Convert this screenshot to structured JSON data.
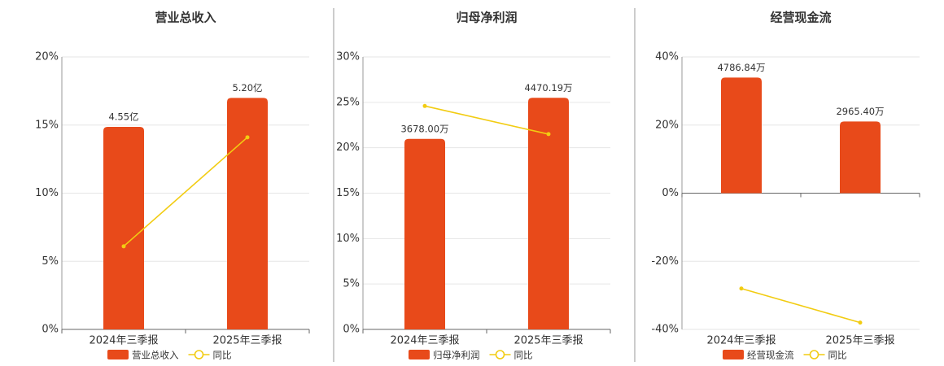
{
  "chart_data": [
    {
      "type": "bar",
      "title": "营业总收入",
      "categories": [
        "2024年三季报",
        "2025年三季报"
      ],
      "series": [
        {
          "name": "营业总收入",
          "type": "bar",
          "color": "#e84a1a",
          "axis": "y2",
          "values": [
            4.55,
            5.2
          ],
          "value_labels": [
            "4.55亿",
            "5.20亿"
          ]
        },
        {
          "name": "同比",
          "type": "line",
          "color": "#f2cc12",
          "values": [
            6.1,
            14.1
          ]
        }
      ],
      "ylim": [
        0,
        20
      ],
      "yticks": [
        {
          "value": 0,
          "label": "0%"
        },
        {
          "value": 5,
          "label": "5%"
        },
        {
          "value": 10,
          "label": "10%"
        },
        {
          "value": 15,
          "label": "15%"
        },
        {
          "value": 20,
          "label": "20%"
        }
      ],
      "y2lim": [
        0,
        6.12
      ],
      "grid": true
    },
    {
      "type": "bar",
      "title": "归母净利润",
      "categories": [
        "2024年三季报",
        "2025年三季报"
      ],
      "series": [
        {
          "name": "归母净利润",
          "type": "bar",
          "color": "#e84a1a",
          "axis": "y2",
          "values": [
            3678.0,
            4470.19
          ],
          "value_labels": [
            "3678.00万",
            "4470.19万"
          ]
        },
        {
          "name": "同比",
          "type": "line",
          "color": "#f2cc12",
          "values": [
            24.6,
            21.5
          ]
        }
      ],
      "ylim": [
        0,
        30
      ],
      "yticks": [
        {
          "value": 0,
          "label": "0%"
        },
        {
          "value": 5,
          "label": "5%"
        },
        {
          "value": 10,
          "label": "10%"
        },
        {
          "value": 15,
          "label": "15%"
        },
        {
          "value": 20,
          "label": "20%"
        },
        {
          "value": 25,
          "label": "25%"
        },
        {
          "value": 30,
          "label": "30%"
        }
      ],
      "y2lim": [
        0,
        5260
      ],
      "grid": true
    },
    {
      "type": "bar",
      "title": "经营现金流",
      "categories": [
        "2024年三季报",
        "2025年三季报"
      ],
      "series": [
        {
          "name": "经营现金流",
          "type": "bar",
          "color": "#e84a1a",
          "axis": "y2",
          "values": [
            4786.84,
            2965.4
          ],
          "value_labels": [
            "4786.84万",
            "2965.40万"
          ]
        },
        {
          "name": "同比",
          "type": "line",
          "color": "#f2cc12",
          "values": [
            -28,
            -38
          ]
        }
      ],
      "ylim": [
        -40,
        40
      ],
      "yticks": [
        {
          "value": -40,
          "label": "-40%"
        },
        {
          "value": -20,
          "label": "-20%"
        },
        {
          "value": 0,
          "label": "0%"
        },
        {
          "value": 20,
          "label": "20%"
        },
        {
          "value": 40,
          "label": "40%"
        }
      ],
      "y2lim": [
        -5640,
        5640
      ],
      "grid": true
    }
  ]
}
